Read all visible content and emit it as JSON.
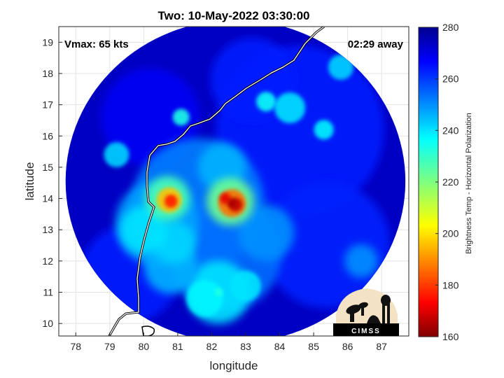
{
  "chart_data": {
    "type": "heatmap",
    "title": "Two: 10-May-2022 03:30:00",
    "xlabel": "longitude",
    "ylabel": "latitude",
    "xlim": [
      77.5,
      87.8
    ],
    "ylim": [
      9.6,
      19.5
    ],
    "xticks": [
      "78",
      "79",
      "80",
      "81",
      "82",
      "83",
      "84",
      "85",
      "86",
      "87"
    ],
    "yticks": [
      "10",
      "11",
      "12",
      "13",
      "14",
      "15",
      "16",
      "17",
      "18",
      "19"
    ],
    "grid": true,
    "annotations": {
      "vmax": "Vmax: 65 kts",
      "away": "02:29 away"
    },
    "colorbar": {
      "label": "Brightness Temp - Horizontal Polarization",
      "range": [
        160,
        280
      ],
      "ticks": [
        "160",
        "180",
        "200",
        "220",
        "240",
        "260",
        "280"
      ],
      "colormap": "jet"
    },
    "swath": {
      "center": [
        82.7,
        14.55
      ],
      "radius_deg": 5.0
    },
    "features": [
      {
        "name": "eye-wall-east",
        "lon": 82.6,
        "lat": 13.85,
        "value": 165
      },
      {
        "name": "rainband-west",
        "lon": 80.8,
        "lat": 13.95,
        "value": 180
      },
      {
        "name": "southern-band",
        "lon": 82.2,
        "lat": 11.0,
        "value": 232
      }
    ],
    "logo": "CIMSS"
  }
}
